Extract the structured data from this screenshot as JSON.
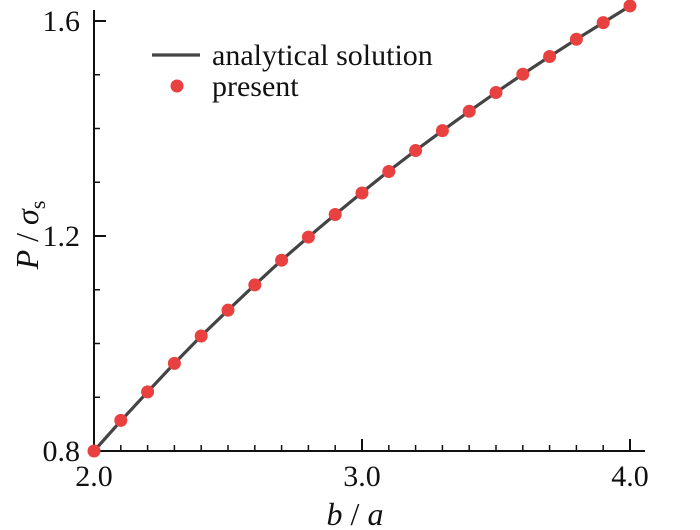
{
  "chart_data": {
    "type": "line",
    "xlabel": {
      "var1": "b",
      "sep": " / ",
      "var2": "a"
    },
    "ylabel": {
      "var1": "P",
      "sep": " / ",
      "var2": "σ",
      "sub": "s"
    },
    "xlim": [
      2.0,
      4.0
    ],
    "ylim": [
      0.8,
      1.6
    ],
    "x_ticks": [
      "2.0",
      "3.0",
      "4.0"
    ],
    "y_ticks": [
      "0.8",
      "1.2",
      "1.6"
    ],
    "x_minor_step": 0.1,
    "y_minor_step": 0.1,
    "legend_position": "top-left",
    "series": [
      {
        "name": "analytical solution",
        "style": "line",
        "color": "#444444",
        "x": [
          2.0,
          2.1,
          2.2,
          2.3,
          2.4,
          2.5,
          2.6,
          2.7,
          2.8,
          2.9,
          3.0,
          3.1,
          3.2,
          3.3,
          3.4,
          3.5,
          3.6,
          3.7,
          3.8,
          3.9,
          4.0
        ],
        "y": [
          0.8,
          0.856,
          0.91,
          0.963,
          1.014,
          1.062,
          1.109,
          1.155,
          1.198,
          1.24,
          1.281,
          1.321,
          1.359,
          1.396,
          1.432,
          1.467,
          1.501,
          1.534,
          1.566,
          1.597,
          1.628
        ]
      },
      {
        "name": "present",
        "style": "marker",
        "color": "#e8413f",
        "x": [
          2.0,
          2.1,
          2.2,
          2.3,
          2.4,
          2.5,
          2.6,
          2.7,
          2.8,
          2.9,
          3.0,
          3.1,
          3.2,
          3.3,
          3.4,
          3.5,
          3.6,
          3.7,
          3.8,
          3.9,
          4.0
        ],
        "y": [
          0.8,
          0.857,
          0.91,
          0.963,
          1.014,
          1.062,
          1.109,
          1.155,
          1.198,
          1.24,
          1.28,
          1.32,
          1.359,
          1.396,
          1.432,
          1.467,
          1.501,
          1.534,
          1.566,
          1.597,
          1.628
        ]
      }
    ]
  }
}
